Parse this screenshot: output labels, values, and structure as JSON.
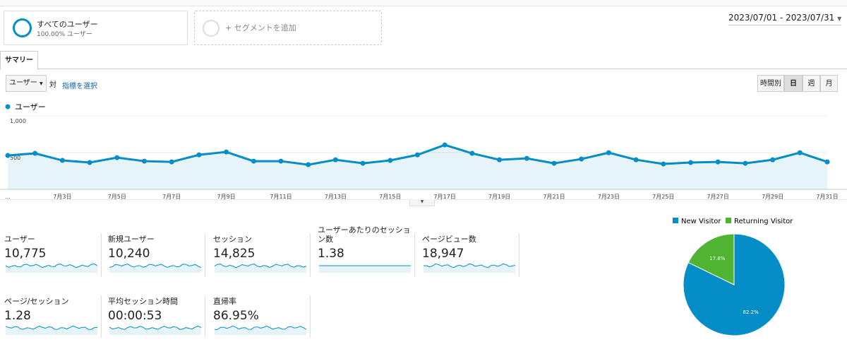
{
  "segments": {
    "active": {
      "name": "すべてのユーザー",
      "share": "100.00% ユーザー"
    },
    "add": "+ セグメントを追加"
  },
  "date_range": "2023/07/01 - 2023/07/31",
  "tabs": [
    "サマリー"
  ],
  "controls": {
    "metric": "ユーザー",
    "versus": "対",
    "select": "指標を選択",
    "granularity": [
      "時間別",
      "日",
      "週",
      "月"
    ]
  },
  "chart_data": [
    {
      "type": "line",
      "categories": [
        "…",
        null,
        "7月3日",
        null,
        "7月5日",
        null,
        "7月7日",
        null,
        "7月9日",
        null,
        "7月11日",
        null,
        "7月13日",
        null,
        "7月15日",
        null,
        "7月17日",
        null,
        "7月19日",
        null,
        "7月21日",
        null,
        "7月23日",
        null,
        "7月25日",
        null,
        "7月27日",
        null,
        "7月29日",
        null,
        "7月31日"
      ],
      "series": [
        {
          "name": "ユーザー",
          "color": "#058dc7",
          "values": [
            461,
            490,
            394,
            365,
            432,
            384,
            374,
            470,
            509,
            384,
            384,
            336,
            403,
            355,
            394,
            470,
            605,
            490,
            403,
            422,
            355,
            413,
            499,
            403,
            346,
            365,
            374,
            355,
            403,
            499,
            374
          ]
        }
      ],
      "ylim": [
        0,
        1000
      ],
      "yticks": [
        {
          "value": 500,
          "label": "500"
        },
        {
          "value": 1000,
          "label": "1,000"
        }
      ],
      "grid": true
    },
    {
      "type": "pie",
      "categories": [
        "New Visitor",
        "Returning Visitor"
      ],
      "values": [
        82.2,
        17.8
      ],
      "value_labels": [
        "82.2%",
        "17.8%"
      ],
      "colors": [
        "#058dc7",
        "#50b432"
      ]
    }
  ],
  "metrics": [
    {
      "label": "ユーザー",
      "value": "10,775"
    },
    {
      "label": "新規ユーザー",
      "value": "10,240"
    },
    {
      "label": "セッション",
      "value": "14,825"
    },
    {
      "label": "ユーザーあたりのセッション数",
      "value": "1.38"
    },
    {
      "label": "ページビュー数",
      "value": "18,947"
    },
    {
      "label": "ページ/セッション",
      "value": "1.28"
    },
    {
      "label": "平均セッション時間",
      "value": "00:00:53"
    },
    {
      "label": "直帰率",
      "value": "86.95%"
    }
  ]
}
